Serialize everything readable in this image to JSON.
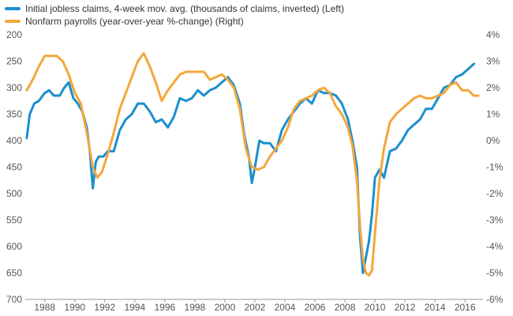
{
  "chart_data": {
    "type": "line",
    "title": "",
    "legend_position": "top-left",
    "grid": false,
    "x_axis": {
      "range": [
        1986.7,
        2017.2
      ],
      "ticks": [
        1988,
        1990,
        1992,
        1994,
        1996,
        1998,
        2000,
        2002,
        2004,
        2006,
        2008,
        2010,
        2012,
        2014,
        2016
      ],
      "tick_labels": [
        "1988",
        "1990",
        "1992",
        "1994",
        "1996",
        "1998",
        "2000",
        "2002",
        "2004",
        "2006",
        "2008",
        "2010",
        "2012",
        "2014",
        "2016"
      ]
    },
    "left_axis": {
      "range": [
        200,
        700
      ],
      "inverted": true,
      "ticks": [
        200,
        250,
        300,
        350,
        400,
        450,
        500,
        550,
        600,
        650,
        700
      ],
      "tick_labels": [
        "200",
        "250",
        "300",
        "350",
        "400",
        "450",
        "500",
        "550",
        "600",
        "650",
        "700"
      ]
    },
    "right_axis": {
      "range": [
        -6,
        4
      ],
      "ticks": [
        4,
        3,
        2,
        1,
        0,
        -1,
        -2,
        -3,
        -4,
        -5,
        -6
      ],
      "tick_labels": [
        "4%",
        "3%",
        "2%",
        "1%",
        "0%",
        "-1%",
        "-2%",
        "-3%",
        "-4%",
        "-5%",
        "-6%"
      ]
    },
    "series": [
      {
        "name": "Initial jobless claims, 4-week mov. avg. (thousands of claims, inverted)  (Left)",
        "axis": "left",
        "color": "#1a8fcf",
        "x": [
          1986.8,
          1987.0,
          1987.3,
          1987.6,
          1988.0,
          1988.3,
          1988.6,
          1989.0,
          1989.3,
          1989.6,
          1989.9,
          1990.2,
          1990.5,
          1990.8,
          1991.0,
          1991.2,
          1991.4,
          1991.6,
          1991.9,
          1992.2,
          1992.6,
          1993.0,
          1993.4,
          1993.8,
          1994.2,
          1994.6,
          1995.0,
          1995.4,
          1995.8,
          1996.2,
          1996.6,
          1997.0,
          1997.4,
          1997.8,
          1998.2,
          1998.6,
          1999.0,
          1999.4,
          1999.8,
          2000.2,
          2000.6,
          2001.0,
          2001.3,
          2001.6,
          2001.8,
          2002.0,
          2002.3,
          2002.6,
          2003.0,
          2003.4,
          2003.8,
          2004.2,
          2004.6,
          2005.0,
          2005.4,
          2005.8,
          2006.2,
          2006.6,
          2007.0,
          2007.4,
          2007.8,
          2008.2,
          2008.5,
          2008.8,
          2009.0,
          2009.2,
          2009.4,
          2009.6,
          2009.8,
          2010.0,
          2010.3,
          2010.6,
          2011.0,
          2011.4,
          2011.8,
          2012.2,
          2012.6,
          2013.0,
          2013.4,
          2013.8,
          2014.2,
          2014.6,
          2015.0,
          2015.4,
          2015.8,
          2016.2,
          2016.6
        ],
        "values": [
          395,
          350,
          330,
          325,
          310,
          305,
          315,
          315,
          300,
          290,
          320,
          330,
          345,
          375,
          420,
          490,
          440,
          430,
          430,
          420,
          420,
          380,
          360,
          350,
          330,
          330,
          345,
          365,
          360,
          375,
          355,
          320,
          325,
          320,
          305,
          315,
          305,
          300,
          290,
          280,
          295,
          330,
          390,
          430,
          480,
          450,
          400,
          405,
          405,
          420,
          380,
          360,
          345,
          330,
          320,
          330,
          305,
          310,
          310,
          315,
          330,
          360,
          400,
          450,
          580,
          650,
          620,
          590,
          540,
          470,
          455,
          470,
          420,
          415,
          400,
          380,
          370,
          360,
          340,
          340,
          320,
          300,
          295,
          280,
          275,
          265,
          255
        ]
      },
      {
        "name": "Nonfarm payrolls (year-over-year %-change) (Right)",
        "axis": "right",
        "color": "#f3a73b",
        "x": [
          1986.8,
          1987.2,
          1987.6,
          1988.0,
          1988.4,
          1988.8,
          1989.2,
          1989.6,
          1990.0,
          1990.4,
          1990.8,
          1991.2,
          1991.5,
          1991.8,
          1992.2,
          1992.6,
          1993.0,
          1993.4,
          1993.8,
          1994.2,
          1994.6,
          1995.0,
          1995.4,
          1995.8,
          1996.2,
          1996.6,
          1997.0,
          1997.4,
          1997.8,
          1998.2,
          1998.6,
          1999.0,
          1999.4,
          1999.8,
          2000.2,
          2000.6,
          2001.0,
          2001.4,
          2001.8,
          2002.2,
          2002.6,
          2003.0,
          2003.4,
          2003.8,
          2004.2,
          2004.6,
          2005.0,
          2005.4,
          2005.8,
          2006.2,
          2006.6,
          2007.0,
          2007.4,
          2007.8,
          2008.2,
          2008.5,
          2008.8,
          2009.0,
          2009.2,
          2009.4,
          2009.6,
          2009.8,
          2010.0,
          2010.3,
          2010.6,
          2011.0,
          2011.4,
          2011.8,
          2012.2,
          2012.6,
          2013.0,
          2013.4,
          2013.8,
          2014.2,
          2014.6,
          2015.0,
          2015.4,
          2015.8,
          2016.2,
          2016.6,
          2016.9
        ],
        "values": [
          1.9,
          2.3,
          2.8,
          3.2,
          3.2,
          3.2,
          3.0,
          2.5,
          1.8,
          1.4,
          0.3,
          -1.0,
          -1.4,
          -1.2,
          -0.5,
          0.3,
          1.2,
          1.8,
          2.4,
          3.0,
          3.3,
          2.8,
          2.2,
          1.5,
          1.9,
          2.2,
          2.5,
          2.6,
          2.6,
          2.6,
          2.6,
          2.3,
          2.4,
          2.5,
          2.3,
          2.0,
          1.2,
          -0.3,
          -1.0,
          -1.1,
          -1.0,
          -0.6,
          -0.3,
          0.0,
          0.5,
          1.2,
          1.5,
          1.6,
          1.7,
          1.9,
          2.0,
          1.8,
          1.3,
          1.0,
          0.5,
          -0.2,
          -1.5,
          -3.2,
          -4.5,
          -5.0,
          -5.1,
          -4.9,
          -3.5,
          -1.5,
          -0.3,
          0.7,
          1.0,
          1.2,
          1.4,
          1.6,
          1.7,
          1.6,
          1.6,
          1.7,
          1.8,
          2.1,
          2.2,
          1.9,
          1.9,
          1.7,
          1.7
        ]
      }
    ]
  }
}
